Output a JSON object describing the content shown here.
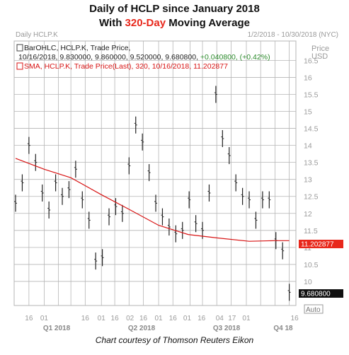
{
  "header": {
    "line1": "Daily of HCLP since January 2018",
    "line2_prefix": "With ",
    "line2_accent": "320-Day",
    "line2_suffix": " Moving Average"
  },
  "panel": {
    "title": "Daily HCLP.K",
    "date_range": "1/2/2018 - 10/30/2018 (NYC)",
    "price_label": "Price",
    "currency_label": "USD",
    "legend": {
      "ohlc_line1": "BarOHLC, HCLP.K, Trade Price,",
      "ohlc_line2": "10/16/2018, 9.830000, 9.860000, 9.520000, 9.680800, ",
      "ohlc_change": "+0.040800, (+0.42%)",
      "sma_line": "SMA, HCLP.K, Trade Price(Last),  320, 10/16/2018, 11.202877"
    },
    "sma_tag": "11.202877",
    "last_tag": "9.680800",
    "auto_label": "Auto"
  },
  "caption": "Chart courtesy of Thomson Reuters Eikon",
  "chart_data": {
    "type": "line",
    "title": "Daily of HCLP since January 2018",
    "subtitle": "With 320-Day Moving Average",
    "ylabel": "USD",
    "ylim": [
      9.5,
      16.5
    ],
    "yticks": [
      10,
      10.5,
      11,
      11.5,
      12,
      12.5,
      13,
      13.5,
      14,
      14.5,
      15,
      15.5,
      16,
      16.5
    ],
    "xticks_days": [
      "16",
      "01",
      "16",
      "01",
      "16",
      "02",
      "16",
      "01",
      "16",
      "01",
      "16",
      "04",
      "17",
      "01",
      "16"
    ],
    "xticks_quarters": [
      "Q1 2018",
      "Q2 2018",
      "Q3 2018",
      "Q4 18"
    ],
    "grid": true,
    "series": [
      {
        "name": "BarOHLC, HCLP.K, Trade Price",
        "style": "ohlc-bars",
        "color": "#222222",
        "x": [
          "2018-01-02",
          "2018-01-09",
          "2018-01-16",
          "2018-01-23",
          "2018-01-30",
          "2018-02-06",
          "2018-02-13",
          "2018-02-20",
          "2018-02-27",
          "2018-03-06",
          "2018-03-13",
          "2018-03-20",
          "2018-03-27",
          "2018-04-03",
          "2018-04-10",
          "2018-04-17",
          "2018-04-24",
          "2018-05-01",
          "2018-05-08",
          "2018-05-15",
          "2018-05-22",
          "2018-05-29",
          "2018-06-05",
          "2018-06-12",
          "2018-06-19",
          "2018-06-26",
          "2018-07-03",
          "2018-07-10",
          "2018-07-17",
          "2018-07-24",
          "2018-07-31",
          "2018-08-07",
          "2018-08-14",
          "2018-08-21",
          "2018-08-28",
          "2018-09-04",
          "2018-09-11",
          "2018-09-18",
          "2018-09-25",
          "2018-10-02",
          "2018-10-09",
          "2018-10-16"
        ],
        "values": [
          12.3,
          12.9,
          14.0,
          13.5,
          12.6,
          12.1,
          12.9,
          12.5,
          12.7,
          13.3,
          12.4,
          11.8,
          10.6,
          10.7,
          11.9,
          12.2,
          12.0,
          13.4,
          14.6,
          14.1,
          13.2,
          12.3,
          11.9,
          11.6,
          11.4,
          11.5,
          12.4,
          11.7,
          11.5,
          12.6,
          15.5,
          14.2,
          13.7,
          12.9,
          12.5,
          12.4,
          11.8,
          12.4,
          12.4,
          11.2,
          10.9,
          9.68
        ]
      },
      {
        "name": "SMA, HCLP.K, Trade Price(Last), 320",
        "style": "line",
        "color": "#d81414",
        "x": [
          "2018-01-02",
          "2018-02-01",
          "2018-03-01",
          "2018-04-02",
          "2018-05-01",
          "2018-06-01",
          "2018-07-02",
          "2018-08-01",
          "2018-09-04",
          "2018-10-01",
          "2018-10-16"
        ],
        "values": [
          13.62,
          13.3,
          13.05,
          12.55,
          12.12,
          11.65,
          11.38,
          11.28,
          11.18,
          11.2,
          11.2
        ]
      }
    ]
  }
}
